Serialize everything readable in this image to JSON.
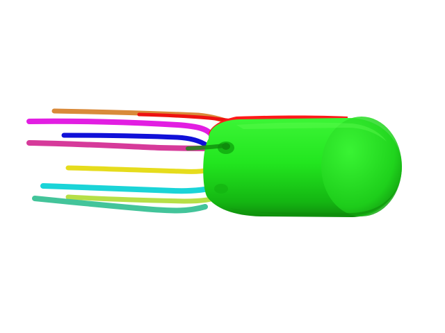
{
  "scene": {
    "background": "#ffffff",
    "body_colors": {
      "main": "#22e61f",
      "shadow": "#0f8c0c",
      "highlight": "#66ff55",
      "back_rim": "#ff1a1a"
    },
    "filaments": [
      {
        "id": "orange",
        "color": "#d98a3a"
      },
      {
        "id": "red",
        "color": "#ee1111"
      },
      {
        "id": "magenta",
        "color": "#e21ee2"
      },
      {
        "id": "blue",
        "color": "#1010d8"
      },
      {
        "id": "pink",
        "color": "#d63a9a"
      },
      {
        "id": "yellow",
        "color": "#e6dc1c"
      },
      {
        "id": "cyan",
        "color": "#1ad4d8"
      },
      {
        "id": "lime",
        "color": "#b6df47"
      },
      {
        "id": "teal",
        "color": "#43c49a"
      }
    ]
  }
}
